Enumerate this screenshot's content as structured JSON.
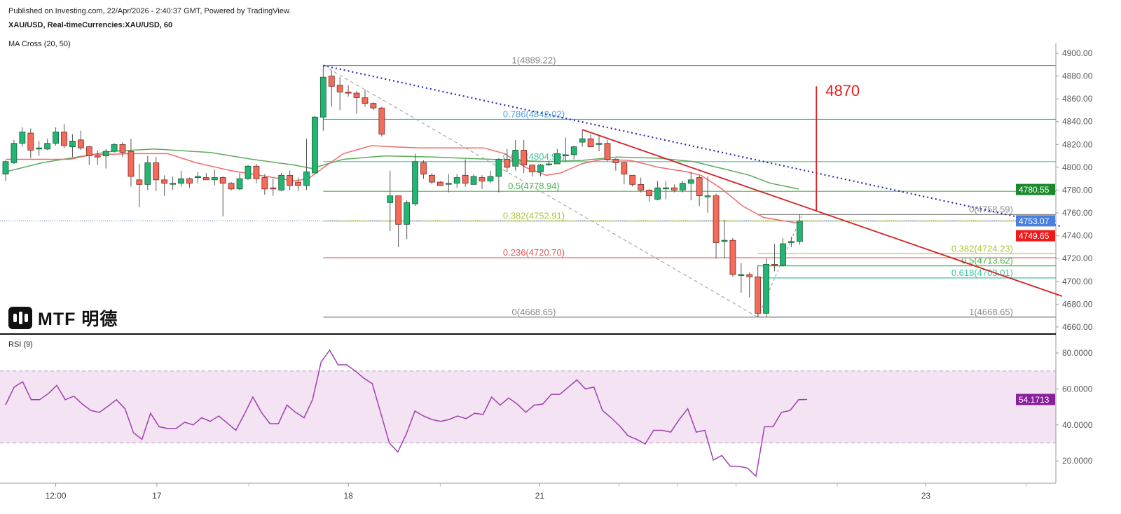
{
  "header": {
    "published": "Published on Investing.com, 22/Apr/2026 - 2:40:37 GMT, Powered by TradingView.",
    "symbol": "XAU/USD, Real-timeCurrencies:XAU/USD, 60",
    "indicator": "MA Cross (20, 50)",
    "rsi_label": "RSI (9)"
  },
  "logo": {
    "text": "MTF 明德"
  },
  "chart_data": {
    "type": "candlestick",
    "title": "XAU/USD, 60",
    "ylim": [
      4655,
      4908
    ],
    "y_ticks": [
      "4900.00",
      "4880.00",
      "4860.00",
      "4840.00",
      "4820.00",
      "4800.00",
      "4780.00",
      "4760.00",
      "4740.00",
      "4720.00",
      "4700.00",
      "4680.00",
      "4660.00"
    ],
    "y_tick_values": [
      4900,
      4880,
      4860,
      4840,
      4820,
      4800,
      4780,
      4760,
      4740,
      4720,
      4700,
      4680,
      4660
    ],
    "x_labels": [
      {
        "text": "12:00",
        "at": 6
      },
      {
        "text": "17",
        "at": 18.1
      },
      {
        "text": "18",
        "at": 41
      },
      {
        "text": "21",
        "at": 63.9
      },
      {
        "text": "23",
        "at": 110.1
      }
    ],
    "x_minor_ticks": [
      29.1,
      52,
      73.4,
      80.4,
      87.4,
      99.5,
      122.1
    ],
    "candles_ohlc": [
      [
        4794,
        4806,
        4788,
        4805
      ],
      [
        4804,
        4824,
        4803,
        4821
      ],
      [
        4821,
        4835,
        4818,
        4831
      ],
      [
        4830,
        4834,
        4808,
        4815
      ],
      [
        4816,
        4823,
        4810,
        4817
      ],
      [
        4816,
        4825,
        4815,
        4821
      ],
      [
        4821,
        4835,
        4819,
        4831
      ],
      [
        4831,
        4838,
        4817,
        4819
      ],
      [
        4818,
        4829,
        4809,
        4823
      ],
      [
        4824,
        4832,
        4815,
        4817
      ],
      [
        4818,
        4819,
        4802,
        4810
      ],
      [
        4810,
        4815,
        4802,
        4809
      ],
      [
        4810,
        4816,
        4799,
        4814
      ],
      [
        4814,
        4821,
        4813,
        4820
      ],
      [
        4820,
        4822,
        4809,
        4813
      ],
      [
        4814,
        4825,
        4783,
        4792
      ],
      [
        4789,
        4803,
        4765,
        4785
      ],
      [
        4785,
        4810,
        4780,
        4804
      ],
      [
        4804,
        4809,
        4779,
        4789
      ],
      [
        4789,
        4793,
        4775,
        4786
      ],
      [
        4786,
        4792,
        4780,
        4786
      ],
      [
        4786,
        4797,
        4783,
        4790
      ],
      [
        4790,
        4791,
        4782,
        4786
      ],
      [
        4791,
        4796,
        4786,
        4792
      ],
      [
        4791,
        4795,
        4789,
        4789
      ],
      [
        4789,
        4798,
        4784,
        4791
      ],
      [
        4791,
        4792,
        4757,
        4786
      ],
      [
        4786,
        4787,
        4780,
        4781
      ],
      [
        4781,
        4795,
        4780,
        4790
      ],
      [
        4790,
        4802,
        4789,
        4801
      ],
      [
        4801,
        4803,
        4786,
        4790
      ],
      [
        4791,
        4794,
        4776,
        4781
      ],
      [
        4782,
        4790,
        4775,
        4781
      ],
      [
        4780,
        4795,
        4779,
        4793
      ],
      [
        4793,
        4797,
        4780,
        4784
      ],
      [
        4787,
        4791,
        4779,
        4784
      ],
      [
        4784,
        4825,
        4780,
        4796
      ],
      [
        4795,
        4845,
        4795,
        4844
      ],
      [
        4844,
        4889.22,
        4832,
        4879
      ],
      [
        4880,
        4885,
        4853,
        4871
      ],
      [
        4872,
        4879,
        4850,
        4866
      ],
      [
        4866,
        4872,
        4862,
        4865
      ],
      [
        4865,
        4867,
        4847,
        4861
      ],
      [
        4861,
        4868,
        4853,
        4856
      ],
      [
        4856,
        4857,
        4850,
        4852
      ],
      [
        4852,
        4853,
        4827,
        4829
      ],
      [
        4769,
        4797,
        4744,
        4775
      ],
      [
        4775,
        4775,
        4730,
        4750
      ],
      [
        4750,
        4771,
        4737,
        4769
      ],
      [
        4768,
        4812,
        4766,
        4805
      ],
      [
        4804,
        4806,
        4790,
        4794
      ],
      [
        4793,
        4795,
        4785,
        4787
      ],
      [
        4787,
        4788,
        4784,
        4784
      ],
      [
        4786,
        4794,
        4778,
        4786
      ],
      [
        4786,
        4794,
        4782,
        4791
      ],
      [
        4793,
        4807,
        4783,
        4786
      ],
      [
        4785,
        4794,
        4785,
        4792
      ],
      [
        4791,
        4793,
        4781,
        4788
      ],
      [
        4788,
        4797,
        4786,
        4792
      ],
      [
        4792,
        4808,
        4778,
        4807
      ],
      [
        4807,
        4816,
        4796,
        4800
      ],
      [
        4801,
        4824,
        4797,
        4815
      ],
      [
        4815,
        4824,
        4795,
        4802
      ],
      [
        4802,
        4802,
        4792,
        4796
      ],
      [
        4796,
        4803,
        4792,
        4802
      ],
      [
        4803,
        4806,
        4801,
        4803
      ],
      [
        4803,
        4816,
        4803,
        4812
      ],
      [
        4810,
        4826,
        4805,
        4811
      ],
      [
        4811,
        4819,
        4807,
        4818
      ],
      [
        4822,
        4833,
        4818,
        4825
      ],
      [
        4825,
        4829,
        4818,
        4818
      ],
      [
        4820,
        4828,
        4814,
        4821
      ],
      [
        4821,
        4824,
        4805,
        4807
      ],
      [
        4807,
        4808,
        4797,
        4804
      ],
      [
        4804,
        4805,
        4785,
        4794
      ],
      [
        4793,
        4793,
        4783,
        4785
      ],
      [
        4785,
        4791,
        4778,
        4780
      ],
      [
        4780,
        4781,
        4770,
        4775
      ],
      [
        4772,
        4788,
        4771,
        4782
      ],
      [
        4782,
        4788,
        4772,
        4782
      ],
      [
        4782,
        4785,
        4778,
        4780
      ],
      [
        4780,
        4788,
        4778,
        4786
      ],
      [
        4786,
        4796,
        4771,
        4789
      ],
      [
        4791,
        4793,
        4766,
        4775
      ],
      [
        4775,
        4792,
        4760,
        4775
      ],
      [
        4775,
        4777,
        4720,
        4734
      ],
      [
        4735,
        4754,
        4720,
        4736
      ],
      [
        4736,
        4738,
        4704,
        4706
      ],
      [
        4706,
        4716,
        4690,
        4706
      ],
      [
        4706,
        4708,
        4686,
        4704
      ],
      [
        4704,
        4714,
        4668.65,
        4672
      ],
      [
        4672,
        4720,
        4668.65,
        4715
      ],
      [
        4715,
        4733,
        4709,
        4714
      ],
      [
        4714,
        4738,
        4713,
        4733
      ],
      [
        4734,
        4739,
        4730,
        4735
      ],
      [
        4735,
        4759,
        4732,
        4753
      ]
    ],
    "ma20": [
      [
        0,
        4807
      ],
      [
        7.7,
        4807
      ],
      [
        10.2,
        4811
      ],
      [
        15.3,
        4812
      ],
      [
        19.4,
        4812
      ],
      [
        22.8,
        4804
      ],
      [
        27,
        4797
      ],
      [
        31.2,
        4792
      ],
      [
        34.5,
        4788
      ],
      [
        36.2,
        4790
      ],
      [
        37.9,
        4799
      ],
      [
        40.4,
        4812
      ],
      [
        43.8,
        4819
      ],
      [
        46.3,
        4818
      ],
      [
        49.6,
        4817
      ],
      [
        53.8,
        4817
      ],
      [
        57.2,
        4817
      ],
      [
        59.7,
        4812
      ],
      [
        62.2,
        4800
      ],
      [
        64.7,
        4793
      ],
      [
        66.4,
        4795
      ],
      [
        68.9,
        4803
      ],
      [
        71.4,
        4807
      ],
      [
        74.8,
        4806
      ],
      [
        78.1,
        4800
      ],
      [
        81.5,
        4796
      ],
      [
        83.2,
        4793
      ],
      [
        85.7,
        4781
      ],
      [
        88.2,
        4766
      ],
      [
        90.7,
        4756
      ],
      [
        93.2,
        4753
      ],
      [
        94.9,
        4751
      ]
    ],
    "ma50": [
      [
        0,
        4796
      ],
      [
        4.4,
        4804
      ],
      [
        9.4,
        4810
      ],
      [
        12.7,
        4814
      ],
      [
        17.8,
        4816
      ],
      [
        24.5,
        4813
      ],
      [
        29.5,
        4807
      ],
      [
        34.5,
        4802
      ],
      [
        36.6,
        4799
      ],
      [
        40.4,
        4807
      ],
      [
        45.4,
        4810
      ],
      [
        51.3,
        4809
      ],
      [
        58,
        4807
      ],
      [
        64.7,
        4805
      ],
      [
        68.9,
        4806
      ],
      [
        73.1,
        4809
      ],
      [
        78.1,
        4808
      ],
      [
        82.3,
        4805
      ],
      [
        85.7,
        4799
      ],
      [
        89,
        4793
      ],
      [
        91.5,
        4786
      ],
      [
        94.9,
        4781
      ]
    ],
    "fib_main": {
      "from_index": 38,
      "levels": [
        {
          "ratio": "1",
          "value": 4889.22,
          "label": "1(4889.22)",
          "color": "#8a8a8a"
        },
        {
          "ratio": "0.786",
          "value": 4842.02,
          "label": "0.786(4842.02)",
          "color": "#4aa3df"
        },
        {
          "ratio": "0.618",
          "value": 4804.96,
          "label": "0.618(4804.96)",
          "color": "#3cc6a0"
        },
        {
          "ratio": "0.5",
          "value": 4778.94,
          "label": "0.5(4778.94)",
          "color": "#4caf50"
        },
        {
          "ratio": "0.382",
          "value": 4752.91,
          "label": "0.382(4752.91)",
          "color": "#a8c83a"
        },
        {
          "ratio": "0.236",
          "value": 4720.7,
          "label": "0.236(4720.70)",
          "color": "#e05a5a"
        },
        {
          "ratio": "0",
          "value": 4668.65,
          "label": "0(4668.65)",
          "color": "#8a8a8a"
        }
      ]
    },
    "fib_second": {
      "from_index": 90,
      "levels": [
        {
          "ratio": "0",
          "value": 4758.59,
          "label": "0(4758.59)",
          "color": "#8a8a8a"
        },
        {
          "ratio": "0.382",
          "value": 4724.23,
          "label": "0.382(4724.23)",
          "color": "#a8c83a"
        },
        {
          "ratio": "0.5",
          "value": 4713.62,
          "label": "0.5(4713.62)",
          "color": "#4caf50"
        },
        {
          "ratio": "0.618",
          "value": 4703.01,
          "label": "0.618(4703.01)",
          "color": "#3cc6a0"
        },
        {
          "ratio": "1",
          "value": 4668.65,
          "label": "1(4668.65)",
          "color": "#8a8a8a"
        }
      ]
    },
    "blue_trendline": [
      [
        38,
        4889.22
      ],
      [
        126.4,
        4748
      ]
    ],
    "red_trendline": [
      [
        69,
        4833
      ],
      [
        126.4,
        4687
      ]
    ],
    "target": {
      "label": "4870",
      "index": 97,
      "from": 4762,
      "to": 4871,
      "color": "#e02020"
    },
    "price_badges": [
      {
        "value": "4780.55",
        "price": 4780.55,
        "color": "#1b8a2e"
      },
      {
        "value": "4753.07",
        "price": 4753.07,
        "color": "#4a7fe0"
      },
      {
        "value": "4749.65",
        "price": 4740,
        "color": "#f01818"
      }
    ],
    "current_price": 4753.07,
    "candle_colors": {
      "up": "#22b573",
      "down": "#f26b5b",
      "up_border": "#1a5e3a",
      "down_border": "#7a2a22"
    },
    "rsi": {
      "label": "RSI (9)",
      "ylim": [
        5,
        88
      ],
      "band": [
        30,
        70
      ],
      "y_ticks": [
        "80.0000",
        "60.0000",
        "40.0000",
        "20.0000"
      ],
      "y_tick_values": [
        80,
        60,
        40,
        20
      ],
      "last": "54.1713",
      "color": "#a040b0",
      "values": [
        51.2,
        61,
        64,
        54,
        54,
        57.4,
        62,
        54,
        56,
        51.6,
        48,
        47,
        50.4,
        54,
        49,
        35.6,
        32,
        46.5,
        39,
        38,
        38,
        41.5,
        40,
        44,
        42,
        45,
        41,
        37,
        46,
        55.5,
        47,
        40.7,
        40.7,
        51,
        47,
        44,
        54,
        75,
        81.5,
        73.4,
        73.4,
        70,
        66,
        63,
        46.5,
        30,
        25,
        35,
        47.7,
        45,
        43,
        42,
        43,
        45,
        43.5,
        46.5,
        45.8,
        55.5,
        51,
        55,
        51.6,
        47,
        51,
        51.6,
        57,
        57,
        61,
        65,
        60,
        61,
        48,
        44,
        39.5,
        34,
        32,
        29.4,
        37,
        37,
        36,
        43,
        49,
        36,
        37,
        20.5,
        23,
        17,
        17,
        16,
        11.5,
        39,
        39,
        47,
        48,
        54,
        54.17
      ]
    }
  }
}
